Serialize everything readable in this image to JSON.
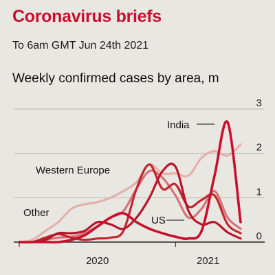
{
  "header": {
    "title": "Coronavirus briefs",
    "subtitle": "To 6am GMT Jun 24th 2021"
  },
  "colors": {
    "background": "#e9e7e2",
    "title": "#c8102e",
    "india": "#c8102e",
    "us": "#b8152b",
    "western_europe": "#c0272d",
    "other": "#e3b0ac",
    "other_mid": "#d2757a"
  },
  "chart_data": {
    "type": "line",
    "title": "Weekly confirmed cases by area, m",
    "xlabel": "",
    "ylabel": "",
    "ylim": [
      0,
      3
    ],
    "yticks": [
      0,
      1,
      2,
      3
    ],
    "xticks": [
      "2020",
      "2021"
    ],
    "x": [
      "2020-01",
      "2020-02",
      "2020-03",
      "2020-04",
      "2020-05",
      "2020-06",
      "2020-07",
      "2020-08",
      "2020-09",
      "2020-10",
      "2020-11",
      "2020-12",
      "2021-01",
      "2021-02",
      "2021-03",
      "2021-04",
      "2021-05",
      "2021-06"
    ],
    "grid": true,
    "series": [
      {
        "name": "Other",
        "values": [
          0.0,
          0.05,
          0.25,
          0.45,
          0.75,
          0.85,
          0.9,
          1.0,
          1.15,
          1.35,
          1.75,
          1.55,
          1.55,
          1.5,
          1.9,
          2.05,
          1.95,
          2.2
        ]
      },
      {
        "name": "",
        "values": [
          0.0,
          0.0,
          0.05,
          0.1,
          0.12,
          0.2,
          0.35,
          0.55,
          0.7,
          1.2,
          1.6,
          1.45,
          1.05,
          0.55,
          0.75,
          1.15,
          0.55,
          0.3
        ]
      },
      {
        "name": "Western Europe",
        "values": [
          0.0,
          0.0,
          0.1,
          0.18,
          0.1,
          0.05,
          0.08,
          0.1,
          0.25,
          1.2,
          1.75,
          1.2,
          1.3,
          0.8,
          0.95,
          1.05,
          0.4,
          0.2
        ]
      },
      {
        "name": "US",
        "values": [
          0.0,
          0.0,
          0.05,
          0.2,
          0.2,
          0.25,
          0.45,
          0.4,
          0.3,
          0.55,
          1.0,
          1.6,
          1.7,
          0.7,
          0.4,
          0.45,
          0.22,
          0.08
        ]
      },
      {
        "name": "India",
        "values": [
          0.0,
          0.0,
          0.0,
          0.0,
          0.05,
          0.15,
          0.35,
          0.55,
          0.65,
          0.45,
          0.3,
          0.2,
          0.12,
          0.08,
          0.25,
          1.5,
          2.7,
          0.45
        ]
      }
    ],
    "annotations": [
      "India",
      "Western Europe",
      "Other",
      "US"
    ]
  }
}
